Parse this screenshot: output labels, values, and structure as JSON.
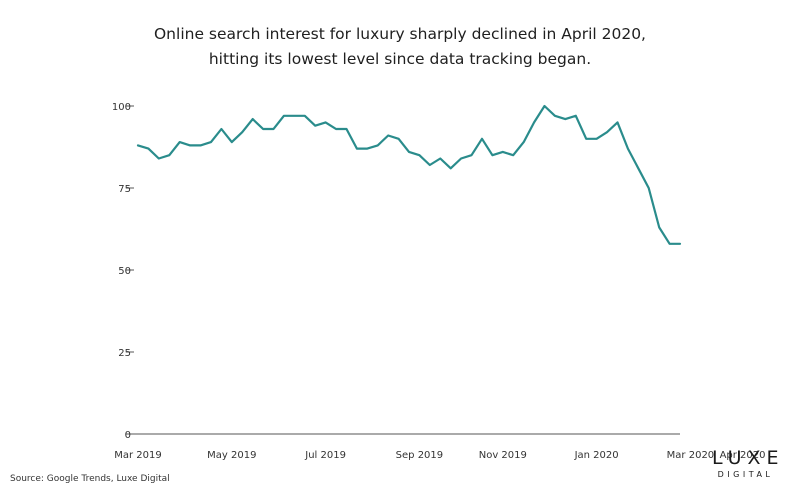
{
  "chart_data": {
    "type": "line",
    "title": "Online search interest for luxury sharply declined in April 2020,",
    "subtitle": "hitting its lowest level since data tracking began.",
    "xlabel": "",
    "ylabel": "",
    "ylim": [
      0,
      100
    ],
    "yticks": [
      "0",
      "25",
      "50",
      "75",
      "100"
    ],
    "grid": false,
    "x_tick_labels": [
      "Mar 2019",
      "May 2019",
      "Jul 2019",
      "Sep 2019",
      "Nov 2019",
      "Jan 2020",
      "Mar 2020",
      "Apr 2020"
    ],
    "x_tick_indices": [
      0,
      9,
      18,
      27,
      35,
      44,
      53,
      58
    ],
    "series": [
      {
        "color": "#2a8c8c",
        "values": [
          88,
          87,
          84,
          85,
          89,
          88,
          88,
          89,
          93,
          89,
          92,
          96,
          93,
          93,
          97,
          97,
          97,
          94,
          95,
          93,
          93,
          87,
          87,
          88,
          91,
          90,
          86,
          85,
          82,
          84,
          81,
          84,
          85,
          90,
          85,
          86,
          85,
          89,
          95,
          100,
          97,
          96,
          97,
          90,
          90,
          92,
          95,
          87,
          81,
          75,
          63,
          58,
          58
        ]
      }
    ]
  },
  "source": "Source: Google Trends, Luxe Digital",
  "logo": {
    "main": "LUXE",
    "sub": "DIGITAL"
  }
}
